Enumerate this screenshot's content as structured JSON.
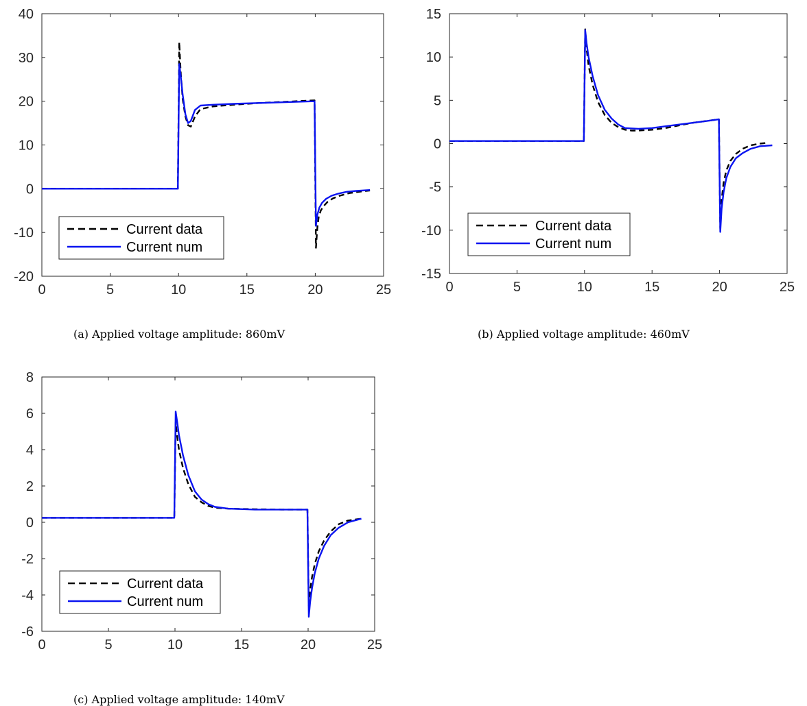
{
  "chart_data": [
    {
      "type": "line",
      "panel": "a",
      "caption_tag": "(a)",
      "caption_text": "Applied voltage amplitude: 860mV",
      "xlim": [
        0,
        25
      ],
      "ylim": [
        -20,
        40
      ],
      "xticks": [
        0,
        5,
        10,
        15,
        20,
        25
      ],
      "yticks": [
        -20,
        -10,
        0,
        10,
        20,
        30,
        40
      ],
      "legend": {
        "placement": "bottom-left",
        "entries": [
          "Current data",
          "Current num"
        ]
      },
      "series": [
        {
          "name": "Current data",
          "color": "#000000",
          "style": "dashed",
          "x": [
            0,
            9.95,
            10.05,
            10.15,
            10.3,
            10.5,
            10.7,
            10.9,
            11.2,
            11.6,
            12.5,
            14,
            16,
            18,
            19.95,
            20.05,
            20.15,
            20.25,
            20.4,
            20.6,
            20.9,
            21.3,
            21.8,
            22.5,
            23.2,
            24
          ],
          "y": [
            0,
            0,
            33.5,
            27,
            20.5,
            16.5,
            14.5,
            14.2,
            16.5,
            18.2,
            18.8,
            19.2,
            19.6,
            19.9,
            20.2,
            -13.5,
            -9,
            -6.5,
            -5,
            -4,
            -3,
            -2.2,
            -1.6,
            -1,
            -0.7,
            -0.4
          ]
        },
        {
          "name": "Current num",
          "color": "#0a14f0",
          "style": "solid",
          "x": [
            0,
            9.95,
            10.05,
            10.15,
            10.3,
            10.5,
            10.7,
            10.9,
            11.2,
            11.6,
            12.5,
            14,
            16,
            18,
            19.95,
            20.05,
            20.15,
            20.3,
            20.5,
            20.8,
            21.2,
            21.7,
            22.3,
            23,
            24
          ],
          "y": [
            0,
            0,
            28.5,
            26,
            21.5,
            17,
            15,
            15.5,
            18,
            19,
            19.2,
            19.4,
            19.6,
            19.8,
            20,
            -8.5,
            -6,
            -4.3,
            -3.2,
            -2.3,
            -1.6,
            -1.1,
            -0.7,
            -0.5,
            -0.3
          ]
        }
      ]
    },
    {
      "type": "line",
      "panel": "b",
      "caption_tag": "(b)",
      "caption_text": "Applied voltage amplitude: 460mV",
      "xlim": [
        0,
        25
      ],
      "ylim": [
        -15,
        15
      ],
      "xticks": [
        0,
        5,
        10,
        15,
        20,
        25
      ],
      "yticks": [
        -15,
        -10,
        -5,
        0,
        5,
        10,
        15
      ],
      "legend": {
        "placement": "bottom-left",
        "entries": [
          "Current data",
          "Current num"
        ]
      },
      "series": [
        {
          "name": "Current data",
          "color": "#000000",
          "style": "dashed",
          "x": [
            0,
            9.95,
            10.05,
            10.15,
            10.3,
            10.6,
            11,
            11.5,
            12,
            12.5,
            13,
            13.5,
            14,
            15,
            16,
            17,
            18,
            19.95,
            20.05,
            20.15,
            20.3,
            20.5,
            20.8,
            21.2,
            21.7,
            22.3,
            23,
            23.6
          ],
          "y": [
            0.3,
            0.3,
            13.2,
            11,
            9,
            6.8,
            4.8,
            3.3,
            2.4,
            1.9,
            1.6,
            1.5,
            1.5,
            1.6,
            1.8,
            2.1,
            2.4,
            2.8,
            -9.8,
            -6.5,
            -4.5,
            -3.1,
            -2,
            -1.2,
            -0.6,
            -0.2,
            0,
            0.1
          ]
        },
        {
          "name": "Current num",
          "color": "#0a14f0",
          "style": "solid",
          "x": [
            0,
            9.95,
            10.05,
            10.15,
            10.3,
            10.6,
            11,
            11.5,
            12,
            12.5,
            13,
            14,
            15,
            16,
            17,
            18,
            19,
            19.95,
            20.05,
            20.15,
            20.3,
            20.5,
            20.8,
            21.2,
            21.7,
            22.3,
            23,
            23.9
          ],
          "y": [
            0.3,
            0.3,
            13.1,
            11.6,
            10,
            7.8,
            5.6,
            3.9,
            2.9,
            2.2,
            1.8,
            1.7,
            1.8,
            2,
            2.2,
            2.4,
            2.6,
            2.8,
            -10.2,
            -7.5,
            -5.6,
            -4,
            -2.7,
            -1.7,
            -1.1,
            -0.6,
            -0.3,
            -0.2
          ]
        }
      ]
    },
    {
      "type": "line",
      "panel": "c",
      "caption_tag": "(c)",
      "caption_text": "Applied voltage amplitude: 140mV",
      "xlim": [
        0,
        25
      ],
      "ylim": [
        -6,
        8
      ],
      "xticks": [
        0,
        5,
        10,
        15,
        20,
        25
      ],
      "yticks": [
        -6,
        -4,
        -2,
        0,
        2,
        4,
        6,
        8
      ],
      "legend": {
        "placement": "bottom-left",
        "entries": [
          "Current data",
          "Current num"
        ]
      },
      "series": [
        {
          "name": "Current data",
          "color": "#000000",
          "style": "dashed",
          "x": [
            0,
            9.95,
            10.05,
            10.15,
            10.3,
            10.6,
            11,
            11.5,
            12,
            12.5,
            13,
            14,
            16,
            18,
            19.95,
            20.05,
            20.15,
            20.3,
            20.5,
            20.8,
            21.2,
            21.7,
            22.3,
            23,
            24
          ],
          "y": [
            0.25,
            0.25,
            5.5,
            4.8,
            4,
            3,
            2.1,
            1.4,
            1.1,
            0.9,
            0.8,
            0.75,
            0.72,
            0.7,
            0.7,
            -4.6,
            -3.7,
            -3,
            -2.3,
            -1.6,
            -1,
            -0.5,
            -0.1,
            0.1,
            0.2
          ]
        },
        {
          "name": "Current num",
          "color": "#0a14f0",
          "style": "solid",
          "x": [
            0,
            9.95,
            10.05,
            10.15,
            10.3,
            10.6,
            11,
            11.5,
            12,
            12.5,
            13,
            14,
            16,
            18,
            19.95,
            20.05,
            20.15,
            20.3,
            20.5,
            20.8,
            21.2,
            21.7,
            22.3,
            23,
            24
          ],
          "y": [
            0.25,
            0.25,
            6.1,
            5.6,
            4.8,
            3.7,
            2.6,
            1.7,
            1.25,
            1,
            0.85,
            0.75,
            0.7,
            0.7,
            0.7,
            -5.2,
            -4.4,
            -3.6,
            -2.8,
            -2,
            -1.3,
            -0.7,
            -0.3,
            0,
            0.2
          ]
        }
      ]
    }
  ]
}
